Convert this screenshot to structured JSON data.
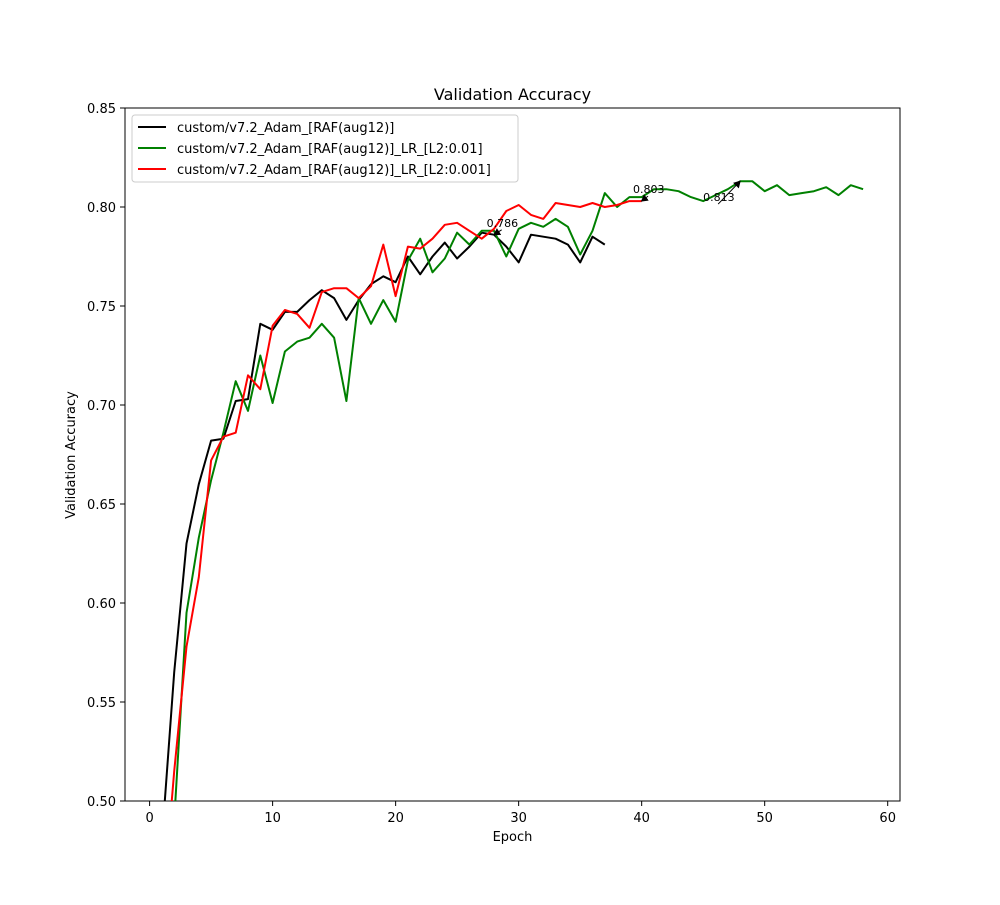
{
  "chart_data": {
    "type": "line",
    "title": "Validation Accuracy",
    "xlabel": "Epoch",
    "ylabel": "Validation Accuracy",
    "xlim": [
      -2,
      61
    ],
    "ylim": [
      0.5,
      0.85
    ],
    "xticks": [
      0,
      10,
      20,
      30,
      40,
      50,
      60
    ],
    "yticks": [
      0.5,
      0.55,
      0.6,
      0.65,
      0.7,
      0.75,
      0.8,
      0.85
    ],
    "xtick_labels": [
      "0",
      "10",
      "20",
      "30",
      "40",
      "50",
      "60"
    ],
    "ytick_labels": [
      "0.50",
      "0.55",
      "0.60",
      "0.65",
      "0.70",
      "0.75",
      "0.80",
      "0.85"
    ],
    "grid": false,
    "legend_position": "top-left",
    "series": [
      {
        "name": "custom/v7.2_Adam_[RAF(aug12)]",
        "color": "#000000",
        "x": [
          1,
          2,
          3,
          4,
          5,
          6,
          7,
          8,
          9,
          10,
          11,
          12,
          13,
          14,
          15,
          16,
          17,
          18,
          19,
          20,
          21,
          22,
          23,
          24,
          25,
          26,
          27,
          28,
          29,
          30,
          31,
          32,
          33,
          34,
          35,
          36,
          37
        ],
        "y": [
          0.48,
          0.565,
          0.63,
          0.66,
          0.682,
          0.683,
          0.702,
          0.703,
          0.741,
          0.738,
          0.747,
          0.747,
          0.753,
          0.758,
          0.754,
          0.743,
          0.753,
          0.761,
          0.765,
          0.762,
          0.775,
          0.766,
          0.775,
          0.782,
          0.774,
          0.78,
          0.787,
          0.786,
          0.78,
          0.772,
          0.786,
          0.785,
          0.784,
          0.781,
          0.772,
          0.785,
          0.781
        ]
      },
      {
        "name": "custom/v7.2_Adam_[RAF(aug12)]_LR_[L2:0.01]",
        "color": "#008000",
        "x": [
          1,
          2,
          3,
          4,
          5,
          6,
          7,
          8,
          9,
          10,
          11,
          12,
          13,
          14,
          15,
          16,
          17,
          18,
          19,
          20,
          21,
          22,
          23,
          24,
          25,
          26,
          27,
          28,
          29,
          30,
          31,
          32,
          33,
          34,
          35,
          36,
          37,
          38,
          39,
          40,
          41,
          42,
          43,
          44,
          45,
          46,
          47,
          48,
          49,
          50,
          51,
          52,
          53,
          54,
          55,
          56,
          57,
          58
        ],
        "y": [
          0.44,
          0.49,
          0.595,
          0.633,
          0.662,
          0.686,
          0.712,
          0.697,
          0.725,
          0.701,
          0.727,
          0.732,
          0.734,
          0.741,
          0.734,
          0.702,
          0.754,
          0.741,
          0.753,
          0.742,
          0.773,
          0.784,
          0.767,
          0.774,
          0.787,
          0.781,
          0.788,
          0.788,
          0.775,
          0.789,
          0.792,
          0.79,
          0.794,
          0.79,
          0.776,
          0.788,
          0.807,
          0.8,
          0.805,
          0.805,
          0.809,
          0.809,
          0.808,
          0.805,
          0.803,
          0.806,
          0.809,
          0.813,
          0.813,
          0.808,
          0.811,
          0.806,
          0.807,
          0.808,
          0.81,
          0.806,
          0.811,
          0.809
        ]
      },
      {
        "name": "custom/v7.2_Adam_[RAF(aug12)]_LR_[L2:0.001]",
        "color": "#ff0000",
        "x": [
          1,
          2,
          3,
          4,
          5,
          6,
          7,
          8,
          9,
          10,
          11,
          12,
          13,
          14,
          15,
          16,
          17,
          18,
          19,
          20,
          21,
          22,
          23,
          24,
          25,
          26,
          27,
          28,
          29,
          30,
          31,
          32,
          33,
          34,
          35,
          36,
          37,
          38,
          39,
          40
        ],
        "y": [
          0.44,
          0.515,
          0.578,
          0.613,
          0.672,
          0.684,
          0.686,
          0.715,
          0.708,
          0.74,
          0.748,
          0.746,
          0.739,
          0.757,
          0.759,
          0.759,
          0.754,
          0.76,
          0.781,
          0.755,
          0.78,
          0.779,
          0.784,
          0.791,
          0.792,
          0.788,
          0.784,
          0.789,
          0.798,
          0.801,
          0.796,
          0.794,
          0.802,
          0.801,
          0.8,
          0.802,
          0.8,
          0.801,
          0.803,
          0.803
        ]
      }
    ],
    "annotations": [
      {
        "text": "0.786",
        "x": 27.4,
        "y": 0.79,
        "arrow_to": [
          28,
          0.786
        ]
      },
      {
        "text": "0.803",
        "x": 39.3,
        "y": 0.807,
        "arrow_to": [
          40,
          0.803
        ]
      },
      {
        "text": "0.813",
        "x": 45.0,
        "y": 0.803,
        "arrow_to": [
          48,
          0.813
        ]
      }
    ]
  }
}
